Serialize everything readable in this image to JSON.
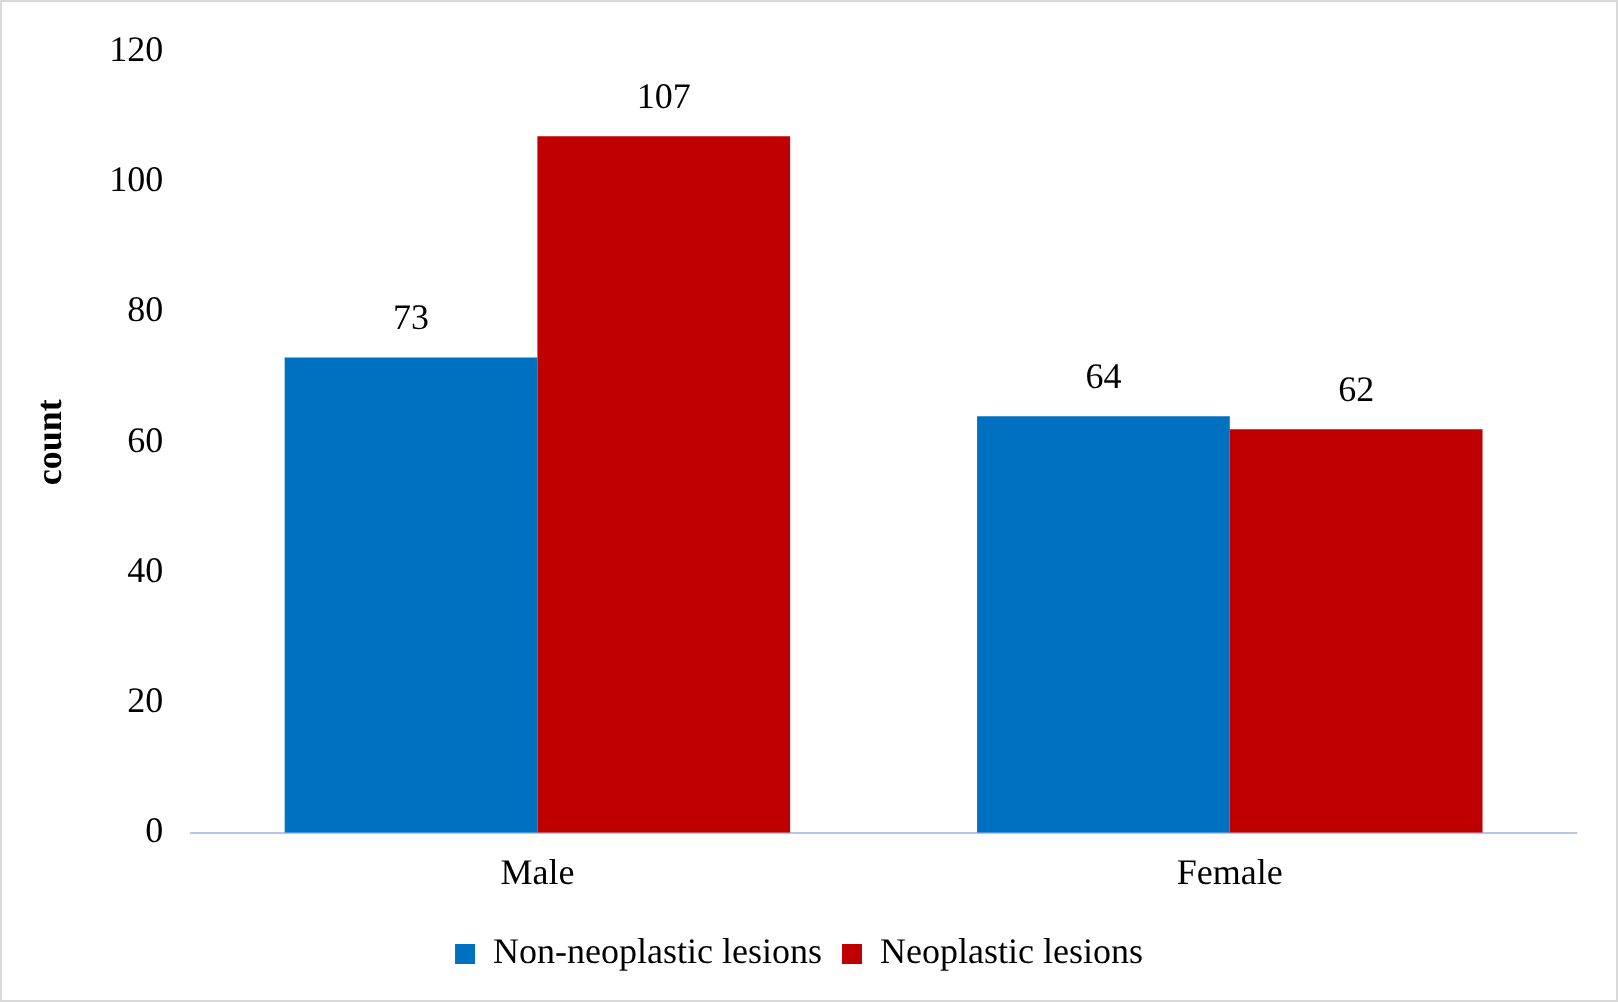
{
  "chart_data": {
    "type": "bar",
    "ylabel": "count",
    "categories": [
      "Male",
      "Female"
    ],
    "series": [
      {
        "name": "Non-neoplastic lesions",
        "color": "#0070c0",
        "values": [
          73,
          64
        ]
      },
      {
        "name": "Neoplastic lesions",
        "color": "#c00000",
        "values": [
          107,
          62
        ]
      }
    ],
    "ylim": [
      0,
      120
    ],
    "yticks": [
      0,
      20,
      40,
      60,
      80,
      100,
      120
    ],
    "grid": false,
    "legend": "bottom",
    "data_labels": true
  }
}
